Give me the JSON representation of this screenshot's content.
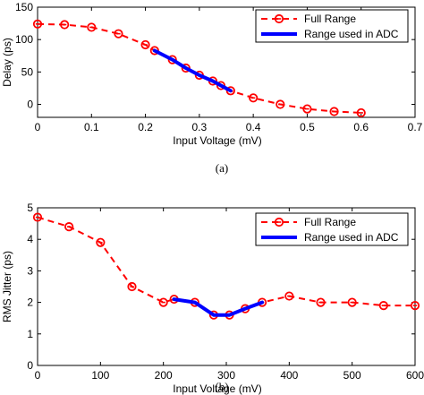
{
  "chart_data": [
    {
      "type": "line",
      "caption": "(a)",
      "xlabel": "Input Voltage (mV)",
      "ylabel": "Delay (ps)",
      "xlim": [
        0,
        0.7
      ],
      "ylim": [
        -20,
        150
      ],
      "xticks": [
        0,
        0.1,
        0.2,
        0.3,
        0.4,
        0.5,
        0.6,
        0.7
      ],
      "xtick_labels": [
        "0",
        "0.1",
        "0.2",
        "0.3",
        "0.4",
        "0.5",
        "0.6",
        "0.7"
      ],
      "yticks": [
        0,
        50,
        100,
        150
      ],
      "ytick_labels": [
        "0",
        "50",
        "100",
        "150"
      ],
      "grid": false,
      "legend": "top-right",
      "series": [
        {
          "name": "Full Range",
          "color": "#ff0000",
          "style": "dashed-circle",
          "x": [
            0.0,
            0.05,
            0.1,
            0.15,
            0.2,
            0.217,
            0.25,
            0.275,
            0.3,
            0.325,
            0.34,
            0.358,
            0.4,
            0.45,
            0.5,
            0.55,
            0.6
          ],
          "y": [
            124,
            123,
            119,
            109,
            92,
            83,
            69,
            56,
            45,
            36,
            29,
            21,
            10,
            0,
            -7,
            -11,
            -13
          ]
        },
        {
          "name": "Range used in ADC",
          "color": "#0000ff",
          "style": "solid-thick",
          "x": [
            0.217,
            0.25,
            0.275,
            0.3,
            0.325,
            0.34,
            0.358
          ],
          "y": [
            83,
            69,
            56,
            45,
            36,
            29,
            21
          ]
        }
      ]
    },
    {
      "type": "line",
      "caption": "(b)",
      "xlabel": "Input Voltage (mV)",
      "ylabel": "RMS Jitter (ps)",
      "xlim": [
        0,
        600
      ],
      "ylim": [
        0,
        5
      ],
      "xticks": [
        0,
        100,
        200,
        300,
        400,
        500,
        600
      ],
      "xtick_labels": [
        "0",
        "100",
        "200",
        "300",
        "400",
        "500",
        "600"
      ],
      "yticks": [
        0,
        1,
        2,
        3,
        4,
        5
      ],
      "ytick_labels": [
        "0",
        "1",
        "2",
        "3",
        "4",
        "5"
      ],
      "grid": false,
      "legend": "top-right",
      "series": [
        {
          "name": "Full Range",
          "color": "#ff0000",
          "style": "dashed-circle",
          "x": [
            0,
            50,
            100,
            150,
            200,
            217,
            250,
            280,
            305,
            330,
            357,
            400,
            450,
            500,
            550,
            600
          ],
          "y": [
            4.7,
            4.4,
            3.9,
            2.5,
            2.0,
            2.1,
            2.0,
            1.6,
            1.6,
            1.8,
            2.0,
            2.2,
            2.0,
            2.0,
            1.9,
            1.9
          ]
        },
        {
          "name": "Range used in ADC",
          "color": "#0000ff",
          "style": "solid-thick",
          "x": [
            217,
            250,
            280,
            305,
            330,
            357
          ],
          "y": [
            2.1,
            2.0,
            1.6,
            1.6,
            1.8,
            2.0
          ]
        }
      ]
    }
  ]
}
